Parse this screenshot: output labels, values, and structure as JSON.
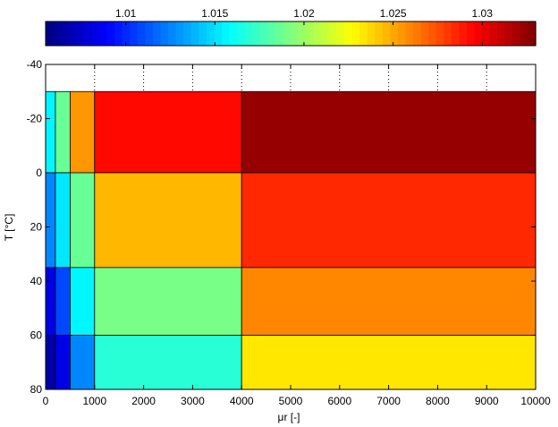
{
  "chart_data": {
    "type": "heatmap",
    "title": "",
    "xlabel": "μr [-]",
    "ylabel": "T [°C]",
    "xlim": [
      0,
      10000
    ],
    "ylim": [
      -40,
      80
    ],
    "y_axis_direction": "reversed",
    "x_ticks": [
      0,
      1000,
      2000,
      3000,
      4000,
      5000,
      6000,
      7000,
      8000,
      9000,
      10000
    ],
    "x_tick_labels": [
      "0",
      "1000",
      "2000",
      "3000",
      "4000",
      "5000",
      "6000",
      "7000",
      "8000",
      "9000",
      "10000"
    ],
    "y_ticks": [
      -40,
      -20,
      0,
      20,
      40,
      60,
      80
    ],
    "y_tick_labels": [
      "-40",
      "-20",
      "0",
      "20",
      "40",
      "60",
      "80"
    ],
    "grid": "dotted, top band only",
    "colormap": "jet",
    "colorbar": {
      "location": "top",
      "clim": [
        1.0055,
        1.033
      ],
      "ticks": [
        1.01,
        1.015,
        1.02,
        1.025,
        1.03
      ],
      "tick_labels": [
        "1.01",
        "1.015",
        "1.02",
        "1.025",
        "1.03"
      ]
    },
    "x_edges": [
      0,
      200,
      500,
      1000,
      4000,
      10000
    ],
    "y_edges": [
      -30,
      0,
      35,
      60,
      80
    ],
    "values": [
      [
        1.0155,
        1.0185,
        1.0255,
        1.0295,
        1.0325
      ],
      [
        1.0125,
        1.015,
        1.0185,
        1.0245,
        1.0285
      ],
      [
        1.0085,
        1.011,
        1.0155,
        1.019,
        1.026
      ],
      [
        1.0065,
        1.0085,
        1.0125,
        1.017,
        1.0235
      ]
    ]
  }
}
